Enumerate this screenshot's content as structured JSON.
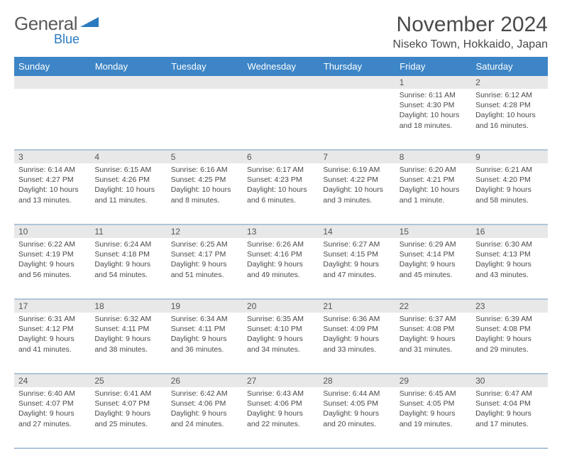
{
  "logo": {
    "word1": "General",
    "word2": "Blue",
    "brand_color": "#2a7ac0"
  },
  "title": "November 2024",
  "location": "Niseko Town, Hokkaido, Japan",
  "header_bg": "#3d85c6",
  "daynum_bg": "#e8e8e8",
  "rule_color": "#b0c4d8",
  "days": [
    "Sunday",
    "Monday",
    "Tuesday",
    "Wednesday",
    "Thursday",
    "Friday",
    "Saturday"
  ],
  "weeks": [
    [
      null,
      null,
      null,
      null,
      null,
      {
        "n": "1",
        "sr": "6:11 AM",
        "ss": "4:30 PM",
        "dl": "10 hours and 18 minutes."
      },
      {
        "n": "2",
        "sr": "6:12 AM",
        "ss": "4:28 PM",
        "dl": "10 hours and 16 minutes."
      }
    ],
    [
      {
        "n": "3",
        "sr": "6:14 AM",
        "ss": "4:27 PM",
        "dl": "10 hours and 13 minutes."
      },
      {
        "n": "4",
        "sr": "6:15 AM",
        "ss": "4:26 PM",
        "dl": "10 hours and 11 minutes."
      },
      {
        "n": "5",
        "sr": "6:16 AM",
        "ss": "4:25 PM",
        "dl": "10 hours and 8 minutes."
      },
      {
        "n": "6",
        "sr": "6:17 AM",
        "ss": "4:23 PM",
        "dl": "10 hours and 6 minutes."
      },
      {
        "n": "7",
        "sr": "6:19 AM",
        "ss": "4:22 PM",
        "dl": "10 hours and 3 minutes."
      },
      {
        "n": "8",
        "sr": "6:20 AM",
        "ss": "4:21 PM",
        "dl": "10 hours and 1 minute."
      },
      {
        "n": "9",
        "sr": "6:21 AM",
        "ss": "4:20 PM",
        "dl": "9 hours and 58 minutes."
      }
    ],
    [
      {
        "n": "10",
        "sr": "6:22 AM",
        "ss": "4:19 PM",
        "dl": "9 hours and 56 minutes."
      },
      {
        "n": "11",
        "sr": "6:24 AM",
        "ss": "4:18 PM",
        "dl": "9 hours and 54 minutes."
      },
      {
        "n": "12",
        "sr": "6:25 AM",
        "ss": "4:17 PM",
        "dl": "9 hours and 51 minutes."
      },
      {
        "n": "13",
        "sr": "6:26 AM",
        "ss": "4:16 PM",
        "dl": "9 hours and 49 minutes."
      },
      {
        "n": "14",
        "sr": "6:27 AM",
        "ss": "4:15 PM",
        "dl": "9 hours and 47 minutes."
      },
      {
        "n": "15",
        "sr": "6:29 AM",
        "ss": "4:14 PM",
        "dl": "9 hours and 45 minutes."
      },
      {
        "n": "16",
        "sr": "6:30 AM",
        "ss": "4:13 PM",
        "dl": "9 hours and 43 minutes."
      }
    ],
    [
      {
        "n": "17",
        "sr": "6:31 AM",
        "ss": "4:12 PM",
        "dl": "9 hours and 41 minutes."
      },
      {
        "n": "18",
        "sr": "6:32 AM",
        "ss": "4:11 PM",
        "dl": "9 hours and 38 minutes."
      },
      {
        "n": "19",
        "sr": "6:34 AM",
        "ss": "4:11 PM",
        "dl": "9 hours and 36 minutes."
      },
      {
        "n": "20",
        "sr": "6:35 AM",
        "ss": "4:10 PM",
        "dl": "9 hours and 34 minutes."
      },
      {
        "n": "21",
        "sr": "6:36 AM",
        "ss": "4:09 PM",
        "dl": "9 hours and 33 minutes."
      },
      {
        "n": "22",
        "sr": "6:37 AM",
        "ss": "4:08 PM",
        "dl": "9 hours and 31 minutes."
      },
      {
        "n": "23",
        "sr": "6:39 AM",
        "ss": "4:08 PM",
        "dl": "9 hours and 29 minutes."
      }
    ],
    [
      {
        "n": "24",
        "sr": "6:40 AM",
        "ss": "4:07 PM",
        "dl": "9 hours and 27 minutes."
      },
      {
        "n": "25",
        "sr": "6:41 AM",
        "ss": "4:07 PM",
        "dl": "9 hours and 25 minutes."
      },
      {
        "n": "26",
        "sr": "6:42 AM",
        "ss": "4:06 PM",
        "dl": "9 hours and 24 minutes."
      },
      {
        "n": "27",
        "sr": "6:43 AM",
        "ss": "4:06 PM",
        "dl": "9 hours and 22 minutes."
      },
      {
        "n": "28",
        "sr": "6:44 AM",
        "ss": "4:05 PM",
        "dl": "9 hours and 20 minutes."
      },
      {
        "n": "29",
        "sr": "6:45 AM",
        "ss": "4:05 PM",
        "dl": "9 hours and 19 minutes."
      },
      {
        "n": "30",
        "sr": "6:47 AM",
        "ss": "4:04 PM",
        "dl": "9 hours and 17 minutes."
      }
    ]
  ],
  "labels": {
    "sunrise": "Sunrise:",
    "sunset": "Sunset:",
    "daylight": "Daylight:"
  }
}
